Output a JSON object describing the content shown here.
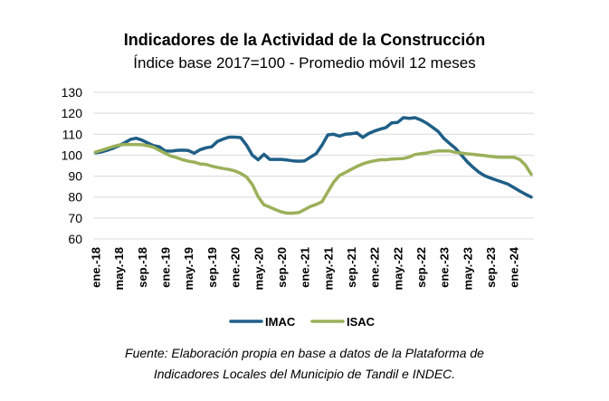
{
  "chart_data": {
    "type": "line",
    "title": "Indicadores de la Actividad de la Construcción",
    "subtitle": "Índice base 2017=100 - Promedio móvil 12 meses",
    "xlabel": "",
    "ylabel": "",
    "ylim": [
      60,
      130
    ],
    "yticks": [
      "60",
      "70",
      "80",
      "90",
      "100",
      "110",
      "120",
      "130"
    ],
    "grid": "horizontal",
    "legend": "bottom",
    "xtick_labels": [
      "ene.-18",
      "may.-18",
      "sep.-18",
      "ene.-19",
      "may.-19",
      "sep.-19",
      "ene.-20",
      "may.-20",
      "sep.-20",
      "ene.-21",
      "may.-21",
      "sep.-21",
      "ene.-22",
      "may.-22",
      "sep.-22",
      "ene.-23",
      "may.-23",
      "sep.-23",
      "ene.-24"
    ],
    "x": [
      "ene-18",
      "feb-18",
      "mar-18",
      "abr-18",
      "may-18",
      "jun-18",
      "jul-18",
      "ago-18",
      "sep-18",
      "oct-18",
      "nov-18",
      "dic-18",
      "ene-19",
      "feb-19",
      "mar-19",
      "abr-19",
      "may-19",
      "jun-19",
      "jul-19",
      "ago-19",
      "sep-19",
      "oct-19",
      "nov-19",
      "dic-19",
      "ene-20",
      "feb-20",
      "mar-20",
      "abr-20",
      "may-20",
      "jun-20",
      "jul-20",
      "ago-20",
      "sep-20",
      "oct-20",
      "nov-20",
      "dic-20",
      "ene-21",
      "feb-21",
      "mar-21",
      "abr-21",
      "may-21",
      "jun-21",
      "jul-21",
      "ago-21",
      "sep-21",
      "oct-21",
      "nov-21",
      "dic-21",
      "ene-22",
      "feb-22",
      "mar-22",
      "abr-22",
      "may-22",
      "jun-22",
      "jul-22",
      "ago-22",
      "sep-22",
      "oct-22",
      "nov-22",
      "dic-22",
      "ene-23",
      "feb-23",
      "mar-23",
      "abr-23",
      "may-23",
      "jun-23",
      "jul-23",
      "ago-23",
      "sep-23",
      "oct-23",
      "nov-23",
      "dic-23",
      "ene-24",
      "feb-24",
      "mar-24",
      "abr-24"
    ],
    "series": [
      {
        "name": "IMAC",
        "color": "#1f5f87",
        "values": [
          101.2,
          101.5,
          102.3,
          103.3,
          104.5,
          105.9,
          107.5,
          108.1,
          107.2,
          105.8,
          104.6,
          104.0,
          102.0,
          101.9,
          102.3,
          102.4,
          102.2,
          100.9,
          102.6,
          103.5,
          104.0,
          106.6,
          107.7,
          108.6,
          108.6,
          108.4,
          104.8,
          100.0,
          97.8,
          100.4,
          98.0,
          98.0,
          98.0,
          97.7,
          97.3,
          97.1,
          97.3,
          99.0,
          100.8,
          104.8,
          109.7,
          110.0,
          109.1,
          110.0,
          110.2,
          110.7,
          108.5,
          110.3,
          111.5,
          112.4,
          113.2,
          115.4,
          115.6,
          117.9,
          117.6,
          117.9,
          116.8,
          115.3,
          113.3,
          111.3,
          107.9,
          105.5,
          103.2,
          100.0,
          96.8,
          94.2,
          91.9,
          90.2,
          89.1,
          88.1,
          87.2,
          86.2,
          84.6,
          82.9,
          81.4,
          80.0
        ]
      },
      {
        "name": "ISAC",
        "color": "#9bb05a",
        "values": [
          101.5,
          102.3,
          103.2,
          104.1,
          104.8,
          105.1,
          105.1,
          105.1,
          105.0,
          104.5,
          103.8,
          102.3,
          100.9,
          99.6,
          98.8,
          97.8,
          97.1,
          96.7,
          95.8,
          95.6,
          94.8,
          94.2,
          93.6,
          93.2,
          92.5,
          91.3,
          89.6,
          86.0,
          80.2,
          76.3,
          75.2,
          74.0,
          72.9,
          72.3,
          72.3,
          72.6,
          74.0,
          75.5,
          76.5,
          77.8,
          82.5,
          87.1,
          90.3,
          91.7,
          93.2,
          94.6,
          95.8,
          96.7,
          97.3,
          97.8,
          97.8,
          98.1,
          98.3,
          98.4,
          99.1,
          100.3,
          100.7,
          101.0,
          101.6,
          102.0,
          102.0,
          102.0,
          101.3,
          101.0,
          100.6,
          100.4,
          100.1,
          99.8,
          99.4,
          99.1,
          99.0,
          99.0,
          99.0,
          98.0,
          95.3,
          90.9
        ]
      }
    ],
    "source_line1": "Fuente: Elaboración propia en base a datos de la Plataforma de",
    "source_line2": "Indicadores Locales del Municipio de Tandil e INDEC."
  }
}
